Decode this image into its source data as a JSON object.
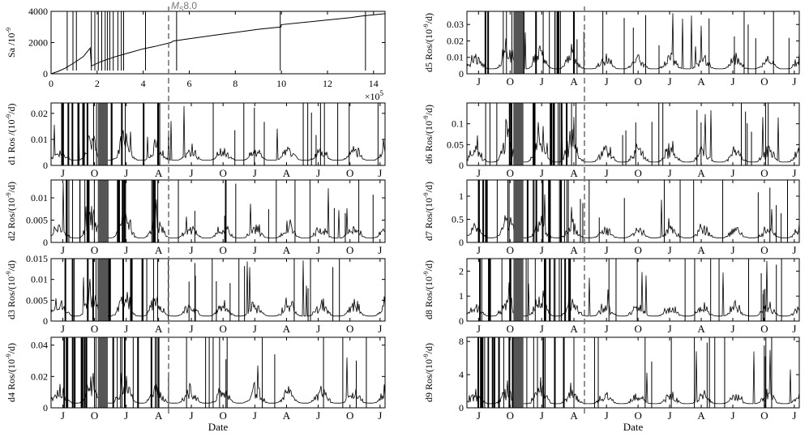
{
  "figure": {
    "marker_label_main": "M",
    "marker_label_sub": "S",
    "marker_label_value": "8.0",
    "marker_color": "#777777",
    "line_color": "#000000",
    "x_axis_title": "Date",
    "exponent_text": "×10",
    "exponent_power": "5"
  },
  "chart_data": [
    {
      "id": "sa",
      "type": "line",
      "ylabel": "Sa /10",
      "ylabel_exp": "-9",
      "ylim": [
        0,
        4000
      ],
      "yticks": [
        0,
        2000,
        4000
      ],
      "yticklabels": [
        "0",
        "2000",
        "4000"
      ],
      "xlim": [
        0,
        14.5
      ],
      "xticks": [
        0,
        2,
        4,
        6,
        8,
        10,
        12,
        14
      ],
      "xticklabels": [
        "0",
        "2",
        "4",
        "6",
        "8",
        "10",
        "12",
        "14"
      ],
      "x": [
        0,
        0.3,
        0.6,
        1.0,
        1.4,
        1.7,
        1.75,
        2.2,
        2.8,
        3.4,
        4.0,
        4.5,
        5.2,
        5.3,
        6.0,
        7.0,
        8.0,
        9.0,
        9.98,
        10.0,
        11.0,
        12.0,
        13.0,
        13.5,
        14.0,
        14.5
      ],
      "values": [
        0,
        150,
        350,
        700,
        1100,
        1650,
        500,
        800,
        1100,
        1350,
        1600,
        1750,
        2000,
        2100,
        2250,
        2450,
        2650,
        2850,
        3000,
        3150,
        3300,
        3450,
        3600,
        3700,
        3780,
        3850
      ],
      "spike_x": [
        0.7,
        0.95,
        1.1,
        1.75,
        1.9,
        2.05,
        2.2,
        2.35,
        2.45,
        2.55,
        2.7,
        2.9,
        3.05,
        3.15,
        4.1,
        5.45,
        9.95,
        13.65
      ],
      "marker_x": 5.1
    },
    {
      "id": "d1",
      "type": "line",
      "ylabel": "d1 Ros /(10",
      "ylabel_exp": "-9",
      "ylabel_tail": "/d)",
      "ylim": [
        0,
        0.024
      ],
      "yticks": [
        0,
        0.01,
        0.02
      ],
      "yticklabels": [
        "0",
        "0.01",
        "0.02"
      ],
      "month_labels": [
        "J",
        "O",
        "J",
        "A",
        "J",
        "O",
        "J",
        "A",
        "J",
        "O",
        "J"
      ],
      "baseline": 0.002,
      "amplitude": 0.006
    },
    {
      "id": "d2",
      "type": "line",
      "ylabel": "d2 Ros/(10",
      "ylabel_exp": "-9",
      "ylabel_tail": "/d)",
      "ylim": [
        0,
        0.014
      ],
      "yticks": [
        0,
        0.005,
        0.01
      ],
      "yticklabels": [
        "0",
        "0.005",
        "0.01"
      ],
      "month_labels": [
        "J",
        "O",
        "J",
        "A",
        "J",
        "O",
        "J",
        "A",
        "J",
        "O",
        "J"
      ],
      "baseline": 0.001,
      "amplitude": 0.004
    },
    {
      "id": "d3",
      "type": "line",
      "ylabel": "d3 Ros/(10",
      "ylabel_exp": "-9",
      "ylabel_tail": "/d)",
      "ylim": [
        0,
        0.015
      ],
      "yticks": [
        0,
        0.005,
        0.01,
        0.015
      ],
      "yticklabels": [
        "0",
        "0.005",
        "0.01",
        "0.015"
      ],
      "month_labels": [
        "J",
        "O",
        "J",
        "A",
        "J",
        "O",
        "J",
        "A",
        "J",
        "O",
        "J"
      ],
      "baseline": 0.0012,
      "amplitude": 0.0045
    },
    {
      "id": "d4",
      "type": "line",
      "ylabel": "d4 Ros/(10",
      "ylabel_exp": "-9",
      "ylabel_tail": "/d)",
      "ylim": [
        0,
        0.045
      ],
      "yticks": [
        0,
        0.02,
        0.04
      ],
      "yticklabels": [
        "0",
        "0.02",
        "0.04"
      ],
      "month_labels": [
        "J",
        "O",
        "J",
        "A",
        "J",
        "O",
        "J",
        "A",
        "J",
        "O",
        "J"
      ],
      "baseline": 0.003,
      "amplitude": 0.012
    },
    {
      "id": "d5",
      "type": "line",
      "ylabel": "d5 Ros/(10",
      "ylabel_exp": "-9",
      "ylabel_tail": "/d)",
      "ylim": [
        0,
        0.038
      ],
      "yticks": [
        0,
        0.01,
        0.02,
        0.03
      ],
      "yticklabels": [
        "0",
        "0.01",
        "0.02",
        "0.03"
      ],
      "month_labels": [
        "J",
        "O",
        "J",
        "A",
        "J",
        "O",
        "J",
        "A",
        "J",
        "O",
        "J"
      ],
      "baseline": 0.003,
      "amplitude": 0.01
    },
    {
      "id": "d6",
      "type": "line",
      "ylabel": "d6 Ros/(10",
      "ylabel_exp": "-9",
      "ylabel_tail": "/d)",
      "ylim": [
        0,
        0.15
      ],
      "yticks": [
        0,
        0.05,
        0.1
      ],
      "yticklabels": [
        "0",
        "0.05",
        "0.1"
      ],
      "month_labels": [
        "J",
        "O",
        "J",
        "A",
        "J",
        "O",
        "J",
        "A",
        "J",
        "O",
        "J"
      ],
      "baseline": 0.008,
      "amplitude": 0.05
    },
    {
      "id": "d7",
      "type": "line",
      "ylabel": "d7 Ros/(10",
      "ylabel_exp": "-9",
      "ylabel_tail": "/d)",
      "ylim": [
        0,
        1.35
      ],
      "yticks": [
        0,
        0.5,
        1
      ],
      "yticklabels": [
        "0",
        "0.5",
        "1"
      ],
      "month_labels": [
        "J",
        "O",
        "J",
        "A",
        "J",
        "O",
        "J",
        "A",
        "J",
        "O",
        "J"
      ],
      "baseline": 0.1,
      "amplitude": 0.3
    },
    {
      "id": "d8",
      "type": "line",
      "ylabel": "d8 Ros/(10",
      "ylabel_exp": "-9",
      "ylabel_tail": "/d)",
      "ylim": [
        0,
        2.5
      ],
      "yticks": [
        0,
        1,
        2
      ],
      "yticklabels": [
        "0",
        "1",
        "2"
      ],
      "month_labels": [
        "J",
        "O",
        "J",
        "A",
        "J",
        "O",
        "J",
        "A",
        "J",
        "O",
        "J"
      ],
      "baseline": 0.2,
      "amplitude": 0.6
    },
    {
      "id": "d9",
      "type": "line",
      "ylabel": "d9 Ros/(10",
      "ylabel_exp": "-9",
      "ylabel_tail": "/d)",
      "ylim": [
        0,
        8.5
      ],
      "yticks": [
        0,
        4,
        8
      ],
      "yticklabels": [
        "0",
        "4",
        "8"
      ],
      "month_labels": [
        "J",
        "O",
        "J",
        "A",
        "J",
        "O",
        "J",
        "A",
        "J",
        "O",
        "J"
      ],
      "baseline": 0.5,
      "amplitude": 1.6
    }
  ]
}
